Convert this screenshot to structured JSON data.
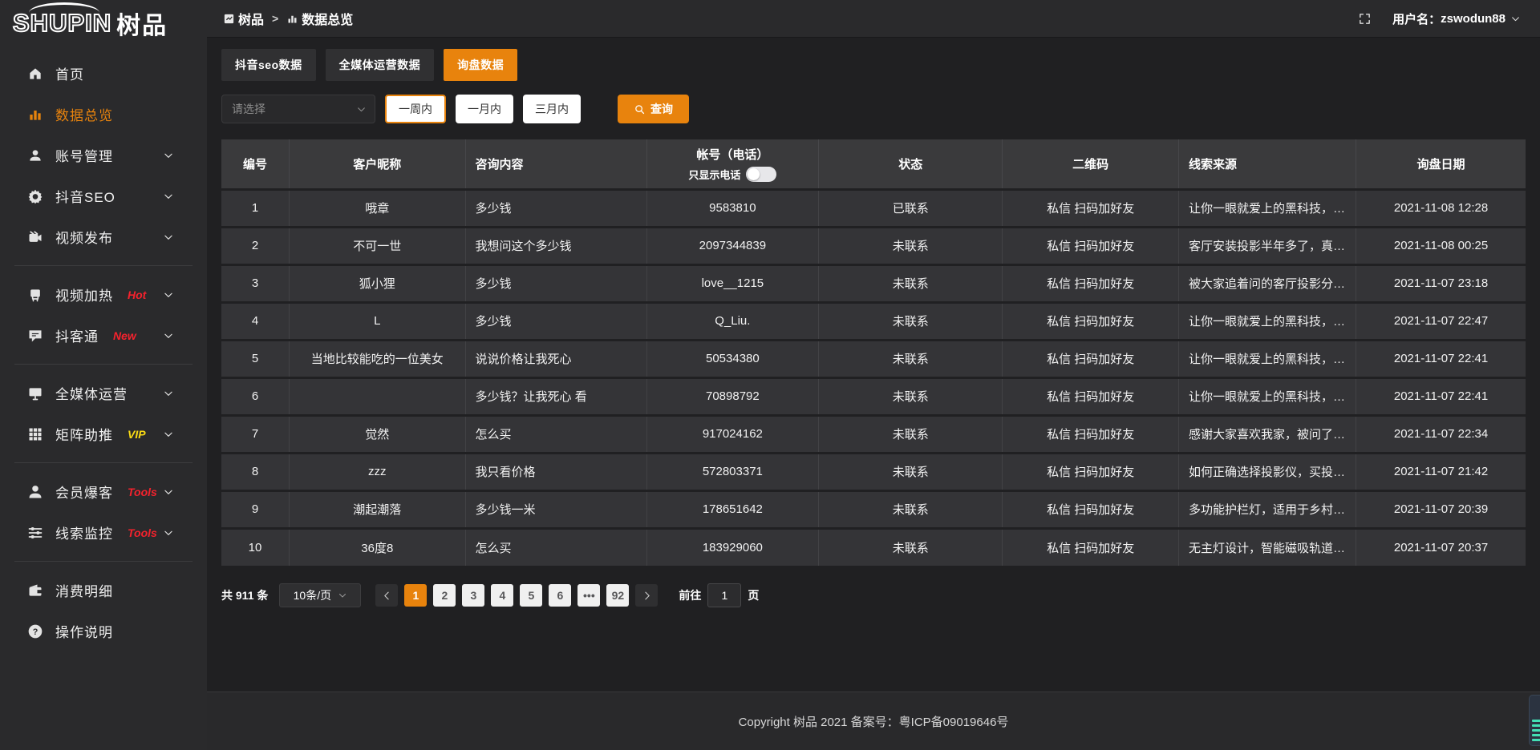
{
  "colors": {
    "accent": "#e8830d",
    "hot_red": "#f5222d",
    "vip_yellow": "#fadb14",
    "widget_teal": "#43e0b4"
  },
  "logo": {
    "en": "SHUPIN",
    "cn": "树品"
  },
  "header": {
    "breadcrumb": [
      {
        "id": "shupin",
        "icon": "panel",
        "label": "树品"
      },
      {
        "id": "data-overview",
        "icon": "bar-chart",
        "label": "数据总览"
      }
    ],
    "separator": ">",
    "username_label": "用户名：",
    "username": "zswodun88"
  },
  "sidebar": {
    "items": [
      {
        "id": "home",
        "icon": "home",
        "label": "首页"
      },
      {
        "id": "data-overview",
        "icon": "bar-chart",
        "label": "数据总览",
        "active": true
      },
      {
        "id": "account-management",
        "icon": "user",
        "label": "账号管理",
        "chevron": true
      },
      {
        "id": "douyin-seo",
        "icon": "gear",
        "label": "抖音SEO",
        "chevron": true
      },
      {
        "id": "video-publish",
        "icon": "video",
        "label": "视频发布",
        "chevron": true
      },
      {
        "divider": true
      },
      {
        "id": "video-heat",
        "icon": "plug",
        "label": "视频加热",
        "badge": "Hot",
        "badge_color": "#f5222d",
        "chevron": true
      },
      {
        "id": "douketong",
        "icon": "chat",
        "label": "抖客通",
        "badge": "New",
        "badge_color": "#f5222d",
        "chevron": true
      },
      {
        "divider": true
      },
      {
        "id": "omni-media",
        "icon": "monitor",
        "label": "全媒体运营",
        "chevron": true
      },
      {
        "id": "matrix-boost",
        "icon": "grid",
        "label": "矩阵助推",
        "badge": "VIP",
        "badge_color": "#fadb14",
        "chevron": true
      },
      {
        "divider": true
      },
      {
        "id": "member-burst",
        "icon": "person",
        "label": "会员爆客",
        "badge": "Tools",
        "badge_color": "#f5222d",
        "chevron": true
      },
      {
        "id": "lead-monitor",
        "icon": "sliders",
        "label": "线索监控",
        "badge": "Tools",
        "badge_color": "#f5222d",
        "chevron": true
      },
      {
        "divider": true
      },
      {
        "id": "expense-detail",
        "icon": "wallet",
        "label": "消费明细"
      },
      {
        "id": "instructions",
        "icon": "help",
        "label": "操作说明"
      }
    ]
  },
  "tabs": [
    {
      "id": "douyin-seo-data",
      "label": "抖音seo数据",
      "active": false
    },
    {
      "id": "omni-media-data",
      "label": "全媒体运营数据",
      "active": false
    },
    {
      "id": "inquiry-data",
      "label": "询盘数据",
      "active": true
    }
  ],
  "filters": {
    "select_placeholder": "请选择",
    "range_buttons": [
      {
        "id": "one-week",
        "label": "一周内",
        "active": true
      },
      {
        "id": "one-month",
        "label": "一月内",
        "active": false
      },
      {
        "id": "three-months",
        "label": "三月内",
        "active": false
      }
    ],
    "search_label": "查询"
  },
  "table": {
    "columns": [
      {
        "id": "no",
        "label": "编号",
        "align": "ac"
      },
      {
        "id": "nickname",
        "label": "客户昵称",
        "align": "ac"
      },
      {
        "id": "content",
        "label": "咨询内容",
        "align": "al"
      },
      {
        "id": "account",
        "label": "帐号（电话）",
        "align": "ac",
        "toggle_label": "只显示电话"
      },
      {
        "id": "status",
        "label": "状态",
        "align": "ac"
      },
      {
        "id": "qr",
        "label": "二维码",
        "align": "ac"
      },
      {
        "id": "source",
        "label": "线索来源",
        "align": "al"
      },
      {
        "id": "date",
        "label": "询盘日期",
        "align": "ac"
      }
    ],
    "rows": [
      {
        "no": "1",
        "nickname": "哦章",
        "content": "多少钱",
        "account": "9583810",
        "status": "已联系",
        "contacted": true,
        "qr": "私信 扫码加好友",
        "source": "让你一眼就爱上的黑科技，能...",
        "date": "2021-11-08 12:28"
      },
      {
        "no": "2",
        "nickname": "不可一世",
        "content": "我想问这个多少钱",
        "account": "2097344839",
        "status": "未联系",
        "contacted": false,
        "qr": "私信 扫码加好友",
        "source": "客厅安装投影半年多了，真实...",
        "date": "2021-11-08 00:25"
      },
      {
        "no": "3",
        "nickname": "狐小狸",
        "content": "多少钱",
        "account": "love__1215",
        "status": "未联系",
        "contacted": false,
        "qr": "私信 扫码加好友",
        "source": "被大家追着问的客厅投影分享...",
        "date": "2021-11-07 23:18"
      },
      {
        "no": "4",
        "nickname": "L",
        "content": "多少钱",
        "account": "Q_Liu.",
        "status": "未联系",
        "contacted": false,
        "qr": "私信 扫码加好友",
        "source": "让你一眼就爱上的黑科技，能...",
        "date": "2021-11-07 22:47"
      },
      {
        "no": "5",
        "nickname": "当地比较能吃的一位美女",
        "content": "说说价格让我死心",
        "account": "50534380",
        "status": "未联系",
        "contacted": false,
        "qr": "私信 扫码加好友",
        "source": "让你一眼就爱上的黑科技，能...",
        "date": "2021-11-07 22:41"
      },
      {
        "no": "6",
        "nickname": "",
        "content": "多少钱？让我死心 看",
        "account": "70898792",
        "status": "未联系",
        "contacted": false,
        "qr": "私信 扫码加好友",
        "source": "让你一眼就爱上的黑科技，能...",
        "date": "2021-11-07 22:41"
      },
      {
        "no": "7",
        "nickname": "觉然",
        "content": "怎么买",
        "account": "917024162",
        "status": "未联系",
        "contacted": false,
        "qr": "私信 扫码加好友",
        "source": "感谢大家喜欢我家，被问了好...",
        "date": "2021-11-07 22:34"
      },
      {
        "no": "8",
        "nickname": "zzz",
        "content": "我只看价格",
        "account": "572803371",
        "status": "未联系",
        "contacted": false,
        "qr": "私信 扫码加好友",
        "source": "如何正确选择投影仪，买投影...",
        "date": "2021-11-07 21:42"
      },
      {
        "no": "9",
        "nickname": "潮起潮落",
        "content": "多少钱一米",
        "account": "178651642",
        "status": "未联系",
        "contacted": false,
        "qr": "私信 扫码加好友",
        "source": "多功能护栏灯，适用于乡村文...",
        "date": "2021-11-07 20:39"
      },
      {
        "no": "10",
        "nickname": "36度8",
        "content": "怎么买",
        "account": "183929060",
        "status": "未联系",
        "contacted": false,
        "qr": "私信 扫码加好友",
        "source": "无主灯设计，智能磁吸轨道灯...",
        "date": "2021-11-07 20:37"
      }
    ]
  },
  "pagination": {
    "total_label": "共 911 条",
    "page_size": "10条/页",
    "pages": [
      "1",
      "2",
      "3",
      "4",
      "5",
      "6",
      "•••",
      "92"
    ],
    "active_page": "1",
    "goto_label": "前往",
    "goto_value": "1",
    "goto_suffix": "页"
  },
  "footer": {
    "copyright": "Copyright 树品 2021 备案号：粤ICP备09019646号"
  }
}
